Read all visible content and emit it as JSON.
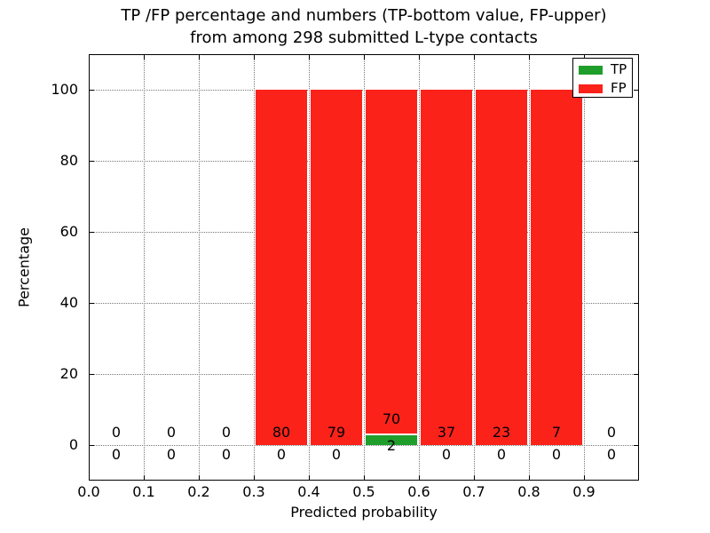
{
  "figure": {
    "title_line1": "TP /FP percentage and numbers (TP-bottom value, FP-upper)",
    "title_line2": "from among 298 submitted L-type contacts",
    "xlabel": "Predicted probability",
    "ylabel": "Percentage"
  },
  "chart_data": {
    "type": "bar",
    "stacked": true,
    "stack_normalized_to_percent": true,
    "title": "TP /FP percentage and numbers (TP-bottom value, FP-upper) from among 298 submitted L-type contacts",
    "xlabel": "Predicted probability",
    "ylabel": "Percentage",
    "xlim": [
      0.0,
      1.0
    ],
    "ylim": [
      -10,
      110
    ],
    "grid": true,
    "x_ticks": [
      "0.0",
      "0.1",
      "0.2",
      "0.3",
      "0.4",
      "0.5",
      "0.6",
      "0.7",
      "0.8",
      "0.9"
    ],
    "y_ticks": [
      0,
      20,
      40,
      60,
      80,
      100
    ],
    "bin_edges": [
      0.0,
      0.1,
      0.2,
      0.3,
      0.4,
      0.5,
      0.6,
      0.7,
      0.8,
      0.9,
      1.0
    ],
    "series": [
      {
        "name": "TP",
        "counts": [
          0,
          0,
          0,
          0,
          0,
          2,
          0,
          0,
          0,
          0
        ]
      },
      {
        "name": "FP",
        "counts": [
          0,
          0,
          0,
          80,
          79,
          70,
          37,
          23,
          7,
          0
        ]
      }
    ],
    "legend": {
      "position": "upper right",
      "entries": [
        {
          "label": "TP",
          "color": "#1f9e2b"
        },
        {
          "label": "FP",
          "color": "#fb221a"
        }
      ]
    },
    "colors": {
      "grid": "#777777",
      "frame": "#000000",
      "text": "#000000",
      "background": "#ffffff"
    }
  }
}
